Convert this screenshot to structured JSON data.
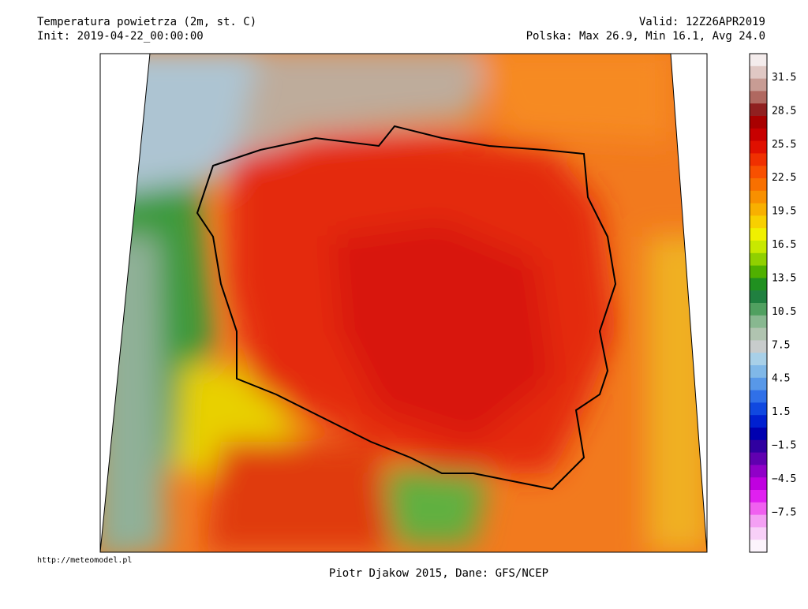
{
  "header": {
    "title": "Temperatura powietrza (2m, st. C)",
    "init": "Init: 2019-04-22_00:00:00",
    "valid": "Valid: 12Z26APR2019",
    "stats": "Polska: Max 26.9, Min 16.1, Avg 24.0"
  },
  "colorbar": {
    "labels": [
      "31.5",
      "28.5",
      "25.5",
      "22.5",
      "19.5",
      "16.5",
      "13.5",
      "10.5",
      "7.5",
      "4.5",
      "1.5",
      "−1.5",
      "−4.5",
      "−7.5"
    ],
    "colors": [
      "#f4ecec",
      "#e0c8c4",
      "#c89c94",
      "#b06860",
      "#902020",
      "#a80000",
      "#c80000",
      "#e01000",
      "#f03000",
      "#f85000",
      "#f87000",
      "#f89000",
      "#f8b000",
      "#f8d000",
      "#f0f000",
      "#c8e800",
      "#90d000",
      "#50b000",
      "#209020",
      "#208040",
      "#50a060",
      "#88b890",
      "#b0c4b0",
      "#c8cccc",
      "#a8d0e8",
      "#80b8e8",
      "#5898e8",
      "#3070e8",
      "#1048e0",
      "#0020d0",
      "#0000b0",
      "#3000a0",
      "#6000b0",
      "#9000c8",
      "#c000e0",
      "#e020f0",
      "#f060f0",
      "#f4a0f4",
      "#f8d0f8",
      "#fcf4fc"
    ]
  },
  "footer": {
    "url": "http://meteomodel.pl",
    "credit": "Piotr Djakow 2015, Dane: GFS/NCEP"
  }
}
